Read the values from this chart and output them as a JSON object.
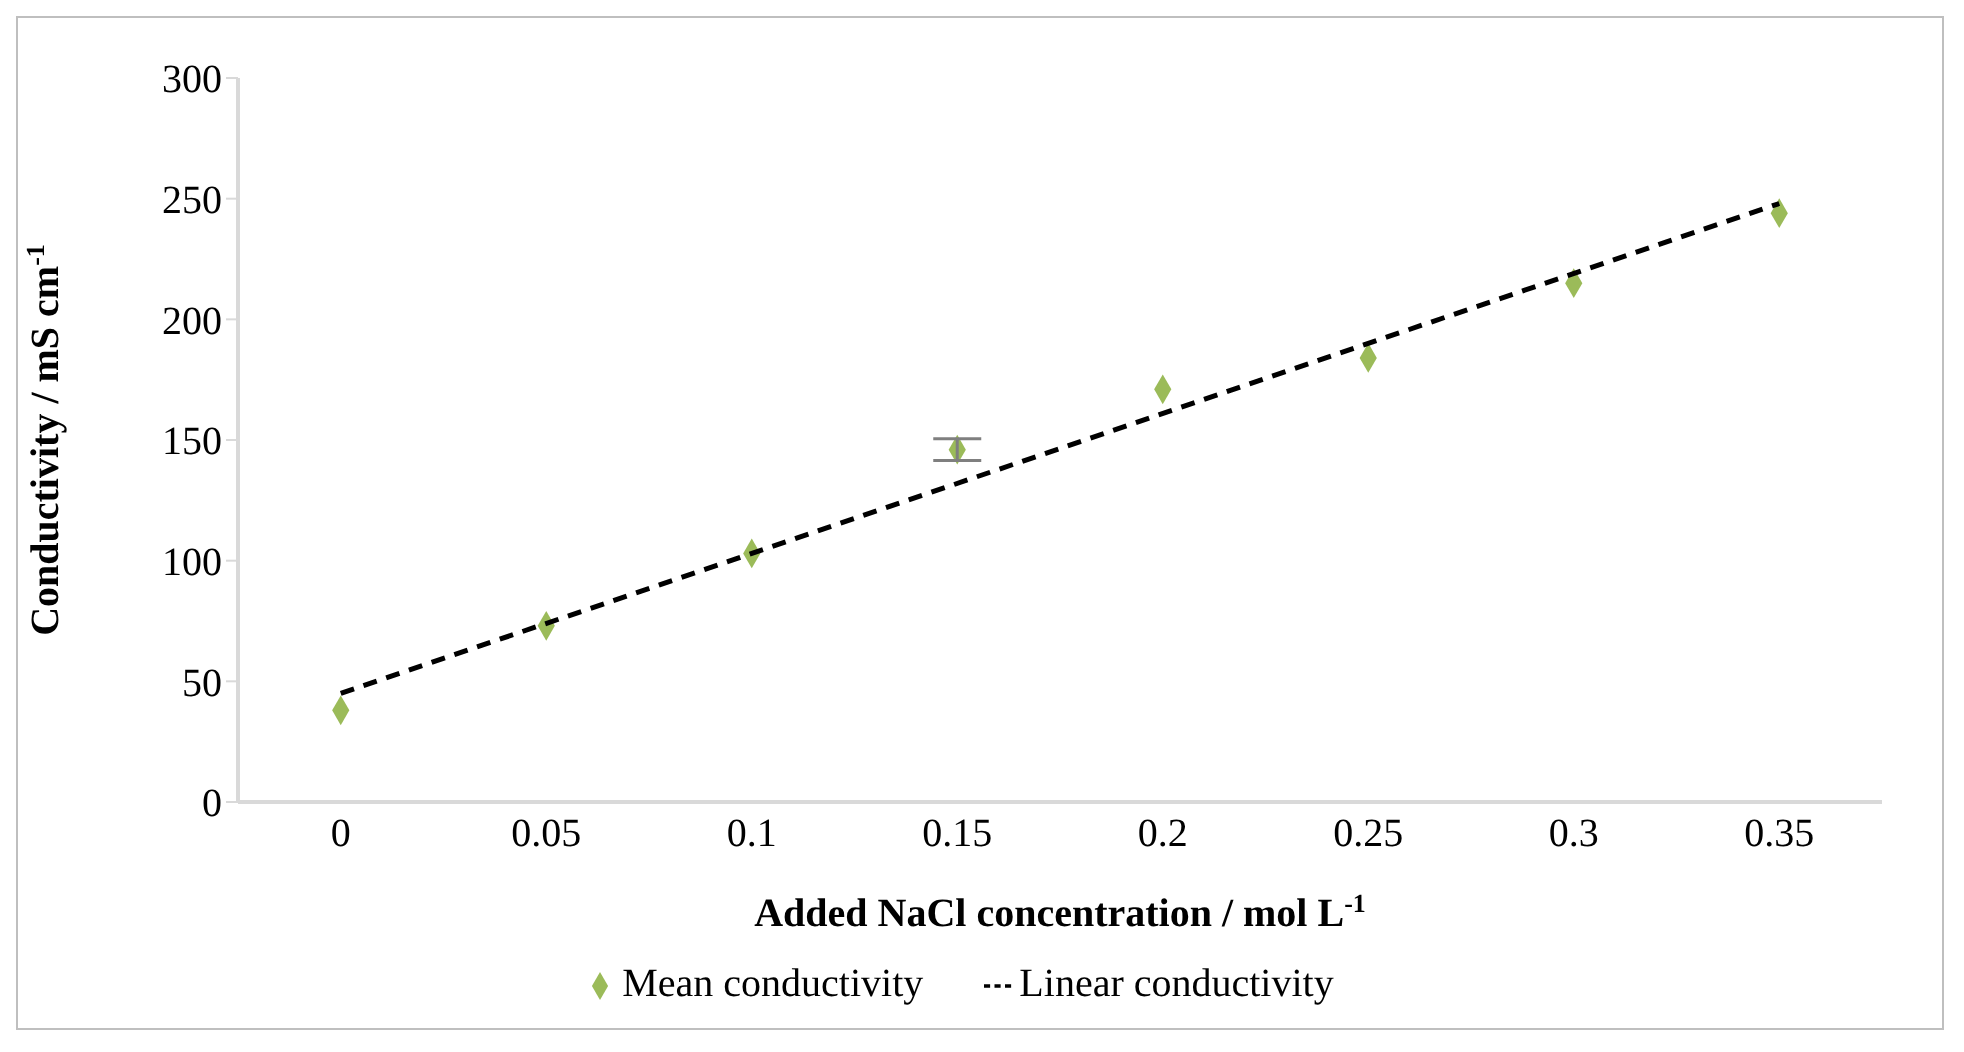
{
  "chart_data": {
    "type": "scatter",
    "xlabel": "Added NaCl concentration / mol L$^{-1}$",
    "ylabel": "Conductivity / mS cm$^{-1}$",
    "categories": [
      "0",
      "0.05",
      "0.1",
      "0.15",
      "0.2",
      "0.25",
      "0.3",
      "0.35"
    ],
    "series": [
      {
        "name": "Mean conductivity",
        "color": "#9bbb59",
        "marker": "diamond",
        "values": [
          38,
          73,
          103,
          146,
          171,
          184,
          215,
          244
        ],
        "errors": [
          null,
          null,
          null,
          4.5,
          null,
          null,
          null,
          null
        ]
      },
      {
        "name": "Linear conductivity",
        "type": "line",
        "color": "#000000",
        "line_style": "dashed",
        "marker": "none",
        "x": [
          "0",
          "0.35"
        ],
        "values": [
          45,
          248
        ]
      }
    ],
    "ylim": [
      0,
      300
    ],
    "yticks": [
      0,
      50,
      100,
      150,
      200,
      250,
      300
    ],
    "grid": false,
    "legend": "bottom"
  }
}
